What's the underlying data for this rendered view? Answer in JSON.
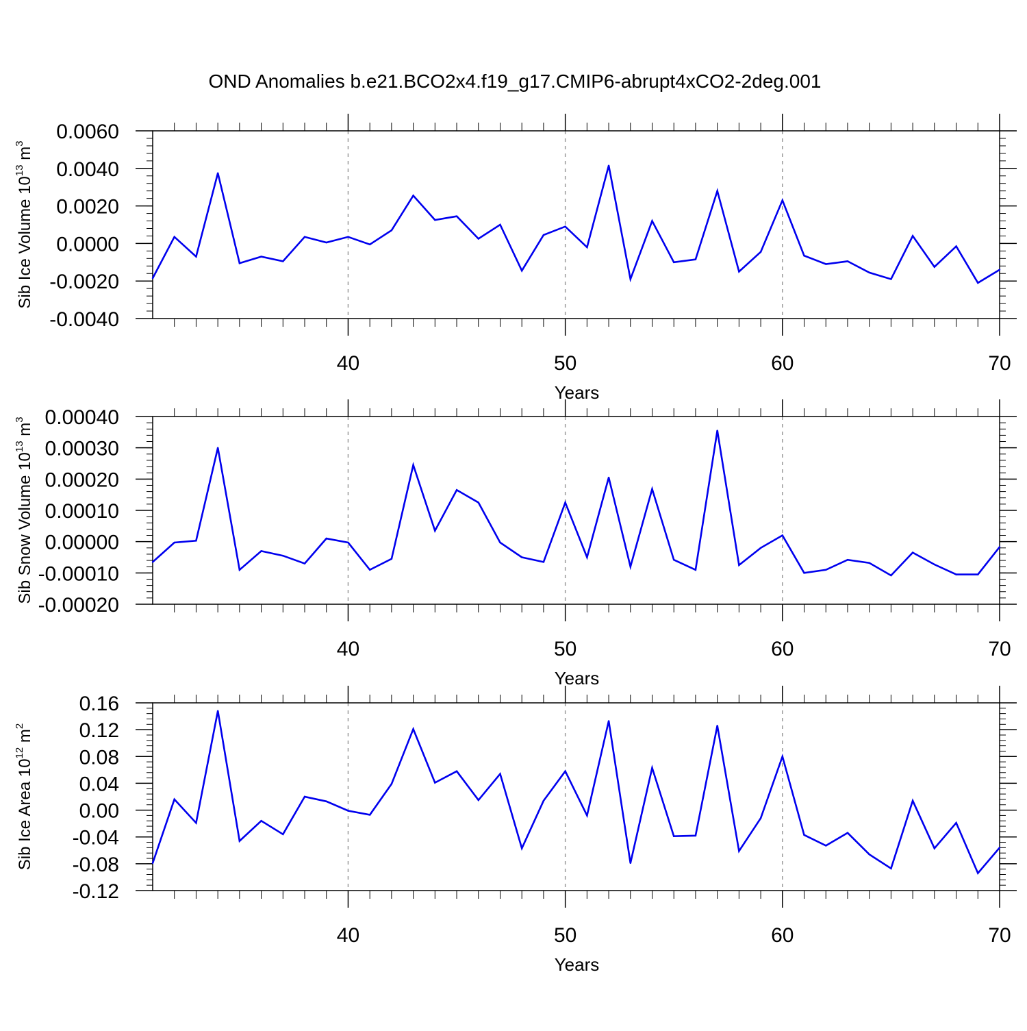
{
  "figure": {
    "title": "OND Anomalies b.e21.BCO2x4.f19_g17.CMIP6-abrupt4xCO2-2deg.001"
  },
  "colors": {
    "line": "#0000ee",
    "axis": "#000000",
    "grid": "#999999"
  },
  "chart_data": [
    {
      "type": "line",
      "name": "sib-ice-volume",
      "title": "OND Anomalies b.e21.BCO2x4.f19_g17.CMIP6-abrupt4xCO2-2deg.001",
      "xlabel": "Years",
      "ylabel_main": "Sib Ice Volume 10",
      "ylabel_exp": "13",
      "ylabel_unit": " m",
      "ylabel_unit_exp": "3",
      "xlim": [
        31,
        70
      ],
      "ylim": [
        -0.004,
        0.006
      ],
      "yticks": [
        -0.004,
        -0.002,
        0.0,
        0.002,
        0.004,
        0.006
      ],
      "ytick_labels": [
        "-0.0040",
        "-0.0020",
        "0.0000",
        "0.0020",
        "0.0040",
        "0.0060"
      ],
      "yminor": 0.0004,
      "xticks": [
        40,
        50,
        60,
        70
      ],
      "xtick_labels": [
        "40",
        "50",
        "60",
        "70"
      ],
      "grid_x": [
        40,
        50,
        60
      ],
      "x": [
        31,
        32,
        33,
        34,
        35,
        36,
        37,
        38,
        39,
        40,
        41,
        42,
        43,
        44,
        45,
        46,
        47,
        48,
        49,
        50,
        51,
        52,
        53,
        54,
        55,
        56,
        57,
        58,
        59,
        60,
        61,
        62,
        63,
        64,
        65,
        66,
        67,
        68,
        69,
        70
      ],
      "values": [
        -0.00185,
        0.00035,
        -0.0007,
        0.00375,
        -0.00105,
        -0.0007,
        -0.00095,
        0.00035,
        5e-05,
        0.00035,
        -5e-05,
        0.0007,
        0.00255,
        0.00125,
        0.00145,
        0.00025,
        0.001,
        -0.00145,
        0.00045,
        0.0009,
        -0.0002,
        0.00415,
        -0.0019,
        0.0012,
        -0.001,
        -0.00085,
        0.0028,
        -0.0015,
        -0.00045,
        0.0023,
        -0.00065,
        -0.0011,
        -0.00095,
        -0.00155,
        -0.0019,
        0.0004,
        -0.00125,
        -0.00015,
        -0.0021,
        -0.0014
      ]
    },
    {
      "type": "line",
      "name": "sib-snow-volume",
      "xlabel": "Years",
      "ylabel_main": "Sib Snow Volume 10",
      "ylabel_exp": "13",
      "ylabel_unit": " m",
      "ylabel_unit_exp": "3",
      "xlim": [
        31,
        70
      ],
      "ylim": [
        -0.0002,
        0.0004
      ],
      "yticks": [
        -0.0002,
        -0.0001,
        0.0,
        0.0001,
        0.0002,
        0.0003,
        0.0004
      ],
      "ytick_labels": [
        "-0.00020",
        "-0.00010",
        "0.00000",
        "0.00010",
        "0.00020",
        "0.00030",
        "0.00040"
      ],
      "yminor": 2e-05,
      "xticks": [
        40,
        50,
        60,
        70
      ],
      "xtick_labels": [
        "40",
        "50",
        "60",
        "70"
      ],
      "grid_x": [
        40,
        50,
        60
      ],
      "x": [
        31,
        32,
        33,
        34,
        35,
        36,
        37,
        38,
        39,
        40,
        41,
        42,
        43,
        44,
        45,
        46,
        47,
        48,
        49,
        50,
        51,
        52,
        53,
        54,
        55,
        56,
        57,
        58,
        59,
        60,
        61,
        62,
        63,
        64,
        65,
        66,
        67,
        68,
        69,
        70
      ],
      "values": [
        -6.5e-05,
        -3e-06,
        3e-06,
        0.0003,
        -9e-05,
        -3e-05,
        -4.5e-05,
        -7e-05,
        1e-05,
        -3e-06,
        -9e-05,
        -5.5e-05,
        0.000245,
        3.5e-05,
        0.000165,
        0.000125,
        -3e-06,
        -5e-05,
        -6.5e-05,
        0.000125,
        -5e-05,
        0.000205,
        -8e-05,
        0.000168,
        -5.8e-05,
        -9e-05,
        0.000355,
        -7.5e-05,
        -2e-05,
        2e-05,
        -0.0001,
        -9e-05,
        -5.8e-05,
        -6.8e-05,
        -0.000108,
        -3.5e-05,
        -7.3e-05,
        -0.000105,
        -0.000105,
        -1.7e-05
      ]
    },
    {
      "type": "line",
      "name": "sib-ice-area",
      "xlabel": "Years",
      "ylabel_main": "Sib Ice Area 10",
      "ylabel_exp": "12",
      "ylabel_unit": " m",
      "ylabel_unit_exp": "2",
      "xlim": [
        31,
        70
      ],
      "ylim": [
        -0.12,
        0.16
      ],
      "yticks": [
        -0.12,
        -0.08,
        -0.04,
        0.0,
        0.04,
        0.08,
        0.12,
        0.16
      ],
      "ytick_labels": [
        "-0.12",
        "-0.08",
        "-0.04",
        "0.00",
        "0.04",
        "0.08",
        "0.12",
        "0.16"
      ],
      "yminor": 0.008,
      "xticks": [
        40,
        50,
        60,
        70
      ],
      "xtick_labels": [
        "40",
        "50",
        "60",
        "70"
      ],
      "grid_x": [
        40,
        50,
        60
      ],
      "x": [
        31,
        32,
        33,
        34,
        35,
        36,
        37,
        38,
        39,
        40,
        41,
        42,
        43,
        44,
        45,
        46,
        47,
        48,
        49,
        50,
        51,
        52,
        53,
        54,
        55,
        56,
        57,
        58,
        59,
        60,
        61,
        62,
        63,
        64,
        65,
        66,
        67,
        68,
        69,
        70
      ],
      "values": [
        -0.079,
        0.016,
        -0.019,
        0.148,
        -0.046,
        -0.016,
        -0.036,
        0.02,
        0.013,
        -0.001,
        -0.007,
        0.039,
        0.121,
        0.041,
        0.058,
        0.015,
        0.054,
        -0.057,
        0.014,
        0.058,
        -0.008,
        0.133,
        -0.079,
        0.063,
        -0.039,
        -0.038,
        0.126,
        -0.061,
        -0.012,
        0.08,
        -0.037,
        -0.053,
        -0.034,
        -0.066,
        -0.087,
        0.014,
        -0.057,
        -0.019,
        -0.094,
        -0.056
      ]
    }
  ]
}
